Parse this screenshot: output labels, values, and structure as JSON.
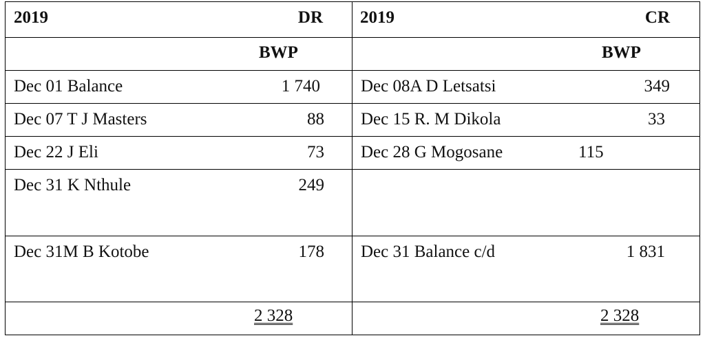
{
  "debit_side": {
    "year": "2019",
    "side_label": "DR",
    "currency": "BWP",
    "entries": [
      {
        "text": "Dec 01 Balance",
        "amount": "1 740"
      },
      {
        "text": "Dec 07 T J Masters",
        "amount": "88"
      },
      {
        "text": "Dec 22 J Eli",
        "amount": "73"
      },
      {
        "text": "Dec 31 K Nthule",
        "amount": "249"
      },
      {
        "text": "Dec 31M B Kotobe",
        "amount": "178"
      }
    ],
    "total": "2 328"
  },
  "credit_side": {
    "year": "2019",
    "side_label": "CR",
    "currency": "BWP",
    "entries": [
      {
        "text": "Dec 08A D Letsatsi",
        "amount": "349"
      },
      {
        "text": "Dec 15 R. M Dikola",
        "amount": "33"
      },
      {
        "text": "Dec 28 G Mogosane",
        "amount": "115"
      },
      {
        "text": "",
        "amount": ""
      },
      {
        "text": "Dec 31 Balance c/d",
        "amount": "1 831"
      }
    ],
    "total": "2 328"
  }
}
